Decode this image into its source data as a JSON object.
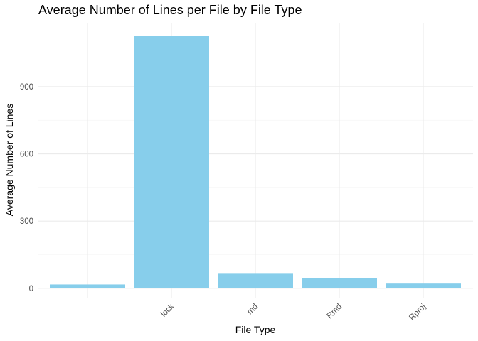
{
  "chart_data": {
    "type": "bar",
    "title": "Average Number of Lines per File by File Type",
    "xlabel": "File Type",
    "ylabel": "Average Number of Lines",
    "categories": [
      "",
      "lock",
      "md",
      "Rmd",
      "Rproj"
    ],
    "values": [
      17,
      1125,
      68,
      45,
      21
    ],
    "ylim": [
      -45,
      1185
    ],
    "yticks": [
      0,
      300,
      600,
      900
    ],
    "bar_color": "#87CEEB",
    "grid": true,
    "legend": "none"
  }
}
